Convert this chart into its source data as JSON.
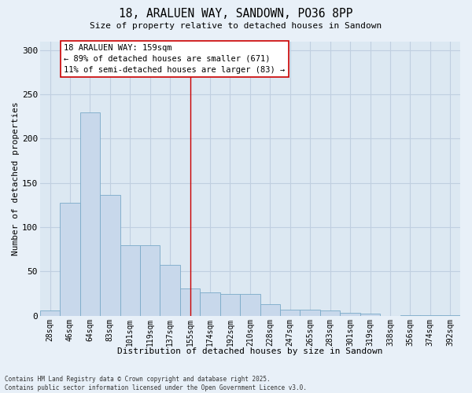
{
  "title": "18, ARALUEN WAY, SANDOWN, PO36 8PP",
  "subtitle": "Size of property relative to detached houses in Sandown",
  "xlabel": "Distribution of detached houses by size in Sandown",
  "ylabel": "Number of detached properties",
  "bar_color": "#c8d8eb",
  "bar_edge_color": "#7aaac8",
  "categories": [
    "28sqm",
    "46sqm",
    "64sqm",
    "83sqm",
    "101sqm",
    "119sqm",
    "137sqm",
    "155sqm",
    "174sqm",
    "192sqm",
    "210sqm",
    "228sqm",
    "247sqm",
    "265sqm",
    "283sqm",
    "301sqm",
    "319sqm",
    "338sqm",
    "356sqm",
    "374sqm",
    "392sqm"
  ],
  "values": [
    6,
    128,
    230,
    136,
    80,
    80,
    57,
    31,
    26,
    25,
    25,
    13,
    7,
    7,
    6,
    3,
    2,
    0,
    1,
    1,
    1
  ],
  "vline_x": 7,
  "vline_color": "#cc0000",
  "annotation_text": "18 ARALUEN WAY: 159sqm\n← 89% of detached houses are smaller (671)\n11% of semi-detached houses are larger (83) →",
  "annotation_box_facecolor": "#ffffff",
  "annotation_box_edgecolor": "#cc0000",
  "ylim": [
    0,
    310
  ],
  "yticks": [
    0,
    50,
    100,
    150,
    200,
    250,
    300
  ],
  "plot_bg_color": "#dce8f2",
  "fig_bg_color": "#e8f0f8",
  "grid_color": "#c0cfe0",
  "footer": "Contains HM Land Registry data © Crown copyright and database right 2025.\nContains public sector information licensed under the Open Government Licence v3.0."
}
